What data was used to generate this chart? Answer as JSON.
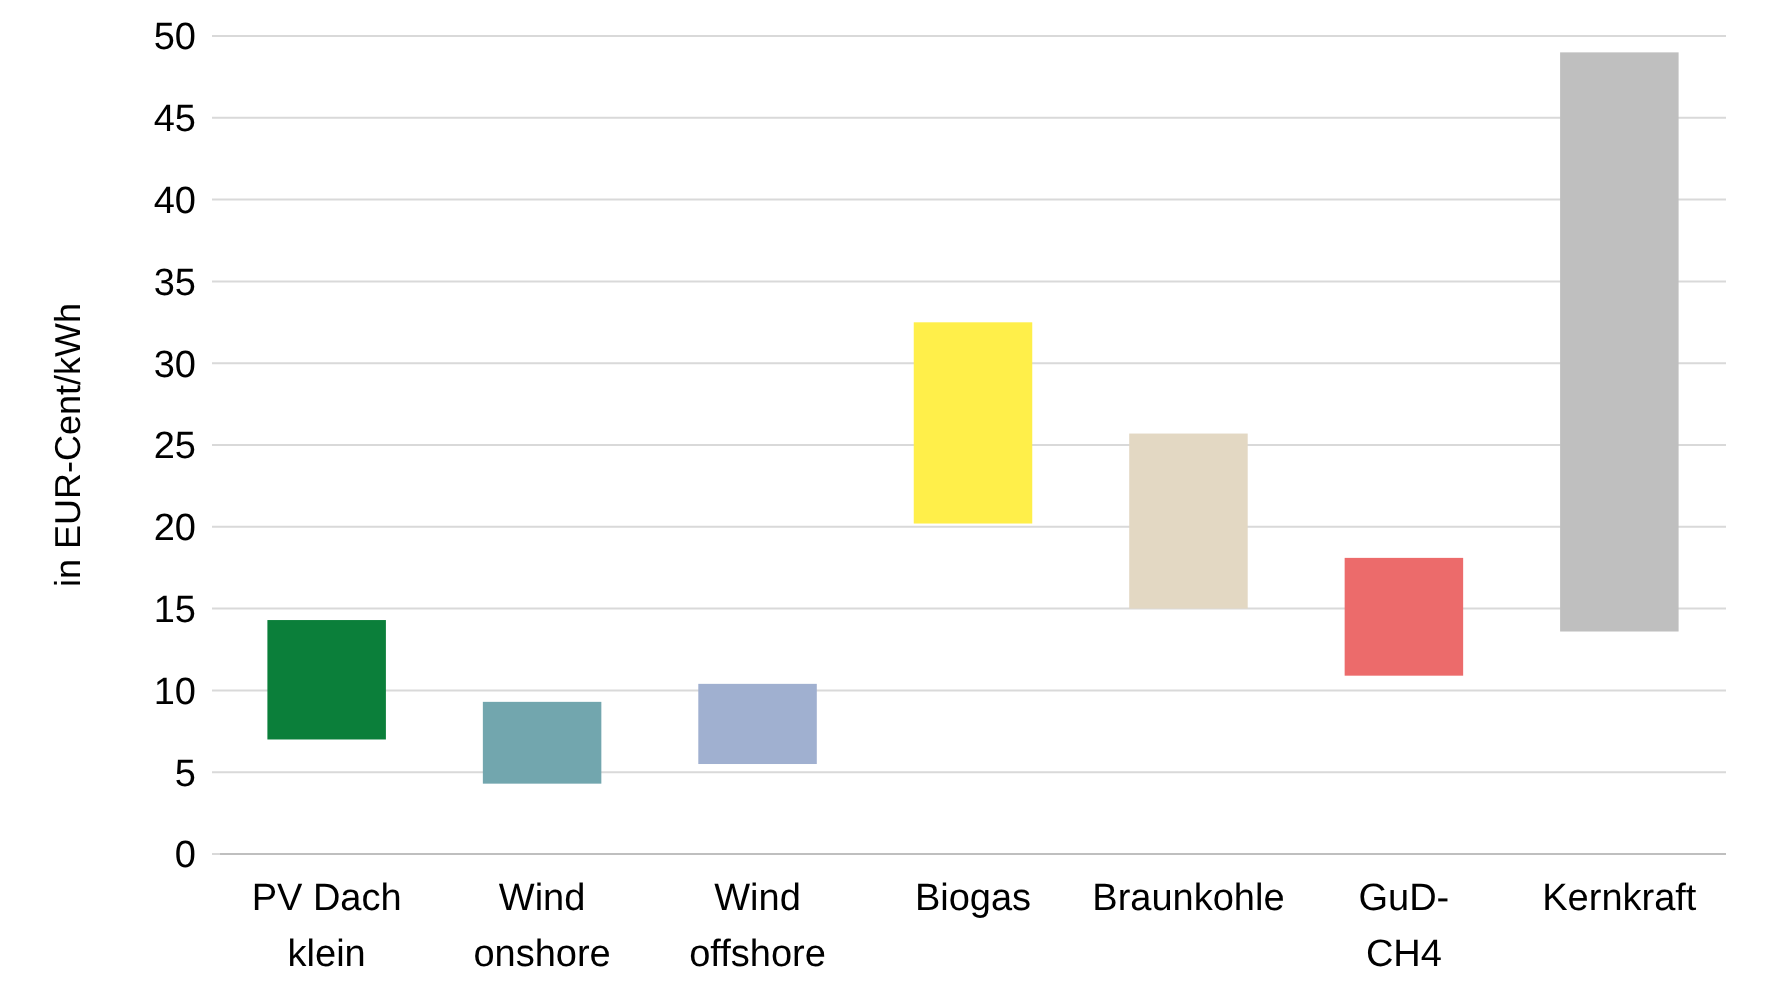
{
  "chart_data": {
    "type": "bar",
    "ylabel": "in EUR-Cent/kWh",
    "categories": [
      "PV Dach\nklein",
      "Wind\nonshore",
      "Wind\noffshore",
      "Biogas",
      "Braunkohle",
      "GuD-\nCH4",
      "Kernkraft"
    ],
    "base": [
      7.0,
      4.3,
      5.5,
      20.2,
      15.0,
      10.9,
      13.6
    ],
    "values": [
      7.3,
      5.0,
      4.9,
      12.3,
      10.7,
      7.2,
      35.4
    ],
    "colors": [
      "#0b7f3a",
      "#72a6ae",
      "#a0b0d0",
      "#ffef4a",
      "#e3d8c3",
      "#ec6b6b",
      "#bfbfbf"
    ],
    "ylim": [
      0,
      50
    ],
    "yticks": [
      0,
      5,
      10,
      15,
      20,
      25,
      30,
      35,
      40,
      45,
      50
    ],
    "grid": "y"
  }
}
